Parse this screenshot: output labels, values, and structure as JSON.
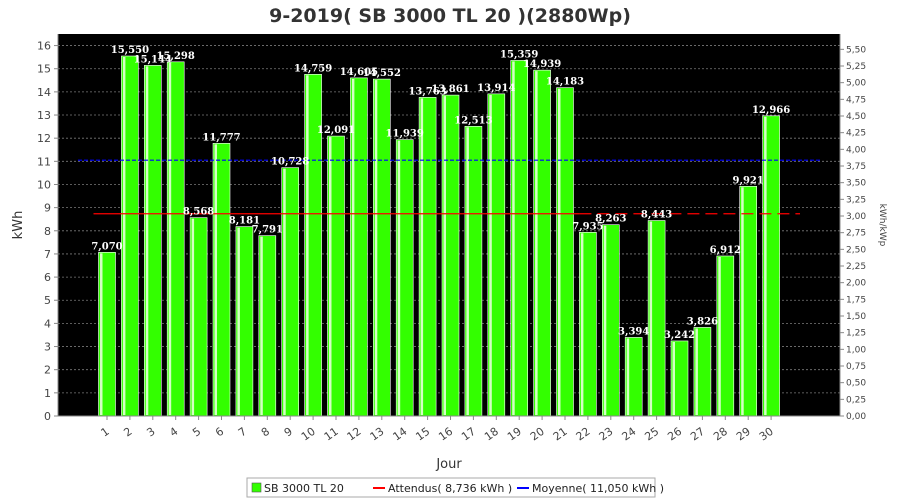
{
  "chart_data": {
    "type": "bar",
    "title": "9-2019( SB 3000 TL 20 )(2880Wp)",
    "xlabel": "Jour",
    "ylabel": "kWh",
    "ylabel_right": "kWh/kWp",
    "ylim": [
      0,
      16.5
    ],
    "ylim_right": [
      0,
      5.73
    ],
    "yticks": [
      0,
      1,
      2,
      3,
      4,
      5,
      6,
      7,
      8,
      9,
      10,
      11,
      12,
      13,
      14,
      15,
      16
    ],
    "yticks_right": [
      "0,00",
      "0,25",
      "0,50",
      "0,75",
      "1,00",
      "1,25",
      "1,50",
      "1,75",
      "2,00",
      "2,25",
      "2,50",
      "2,75",
      "3,00",
      "3,25",
      "3,50",
      "3,75",
      "4,00",
      "4,25",
      "4,50",
      "4,75",
      "5,00",
      "5,25",
      "5,50"
    ],
    "grid": true,
    "categories": [
      "1",
      "2",
      "3",
      "4",
      "5",
      "6",
      "7",
      "8",
      "9",
      "10",
      "11",
      "12",
      "13",
      "14",
      "15",
      "16",
      "17",
      "18",
      "19",
      "20",
      "21",
      "22",
      "23",
      "24",
      "25",
      "26",
      "27",
      "28",
      "29",
      "30"
    ],
    "series": [
      {
        "name": "SB 3000 TL 20",
        "color": "#33ff00",
        "values": [
          7.07,
          15.55,
          15.144,
          15.298,
          8.568,
          11.777,
          8.181,
          7.791,
          10.728,
          14.759,
          12.091,
          14.605,
          14.552,
          11.939,
          13.763,
          13.861,
          12.513,
          13.914,
          15.359,
          14.939,
          14.183,
          7.935,
          8.263,
          3.394,
          8.443,
          3.242,
          3.826,
          6.912,
          9.921,
          12.966
        ],
        "labels": [
          "7,070",
          "15,550",
          "15,144",
          "15,298",
          "8,568",
          "11,777",
          "8,181",
          "7,791",
          "10,728",
          "14,759",
          "12,091",
          "14,605",
          "14,552",
          "11,939",
          "13,763",
          "13,861",
          "12,513",
          "13,914",
          "15,359",
          "14,939",
          "14,183",
          "7,935",
          "8,263",
          "3,394",
          "8,443",
          "3,242",
          "3,826",
          "6,912",
          "9,921",
          "12,966"
        ]
      }
    ],
    "reference_lines": [
      {
        "name": "Attendus( 8,736 kWh )",
        "value": 8.736,
        "color": "#ff0000"
      },
      {
        "name": "Moyenne( 11,050 kWh )",
        "value": 11.05,
        "color": "#0000ff"
      }
    ],
    "legend_placement": "bottom-center"
  }
}
